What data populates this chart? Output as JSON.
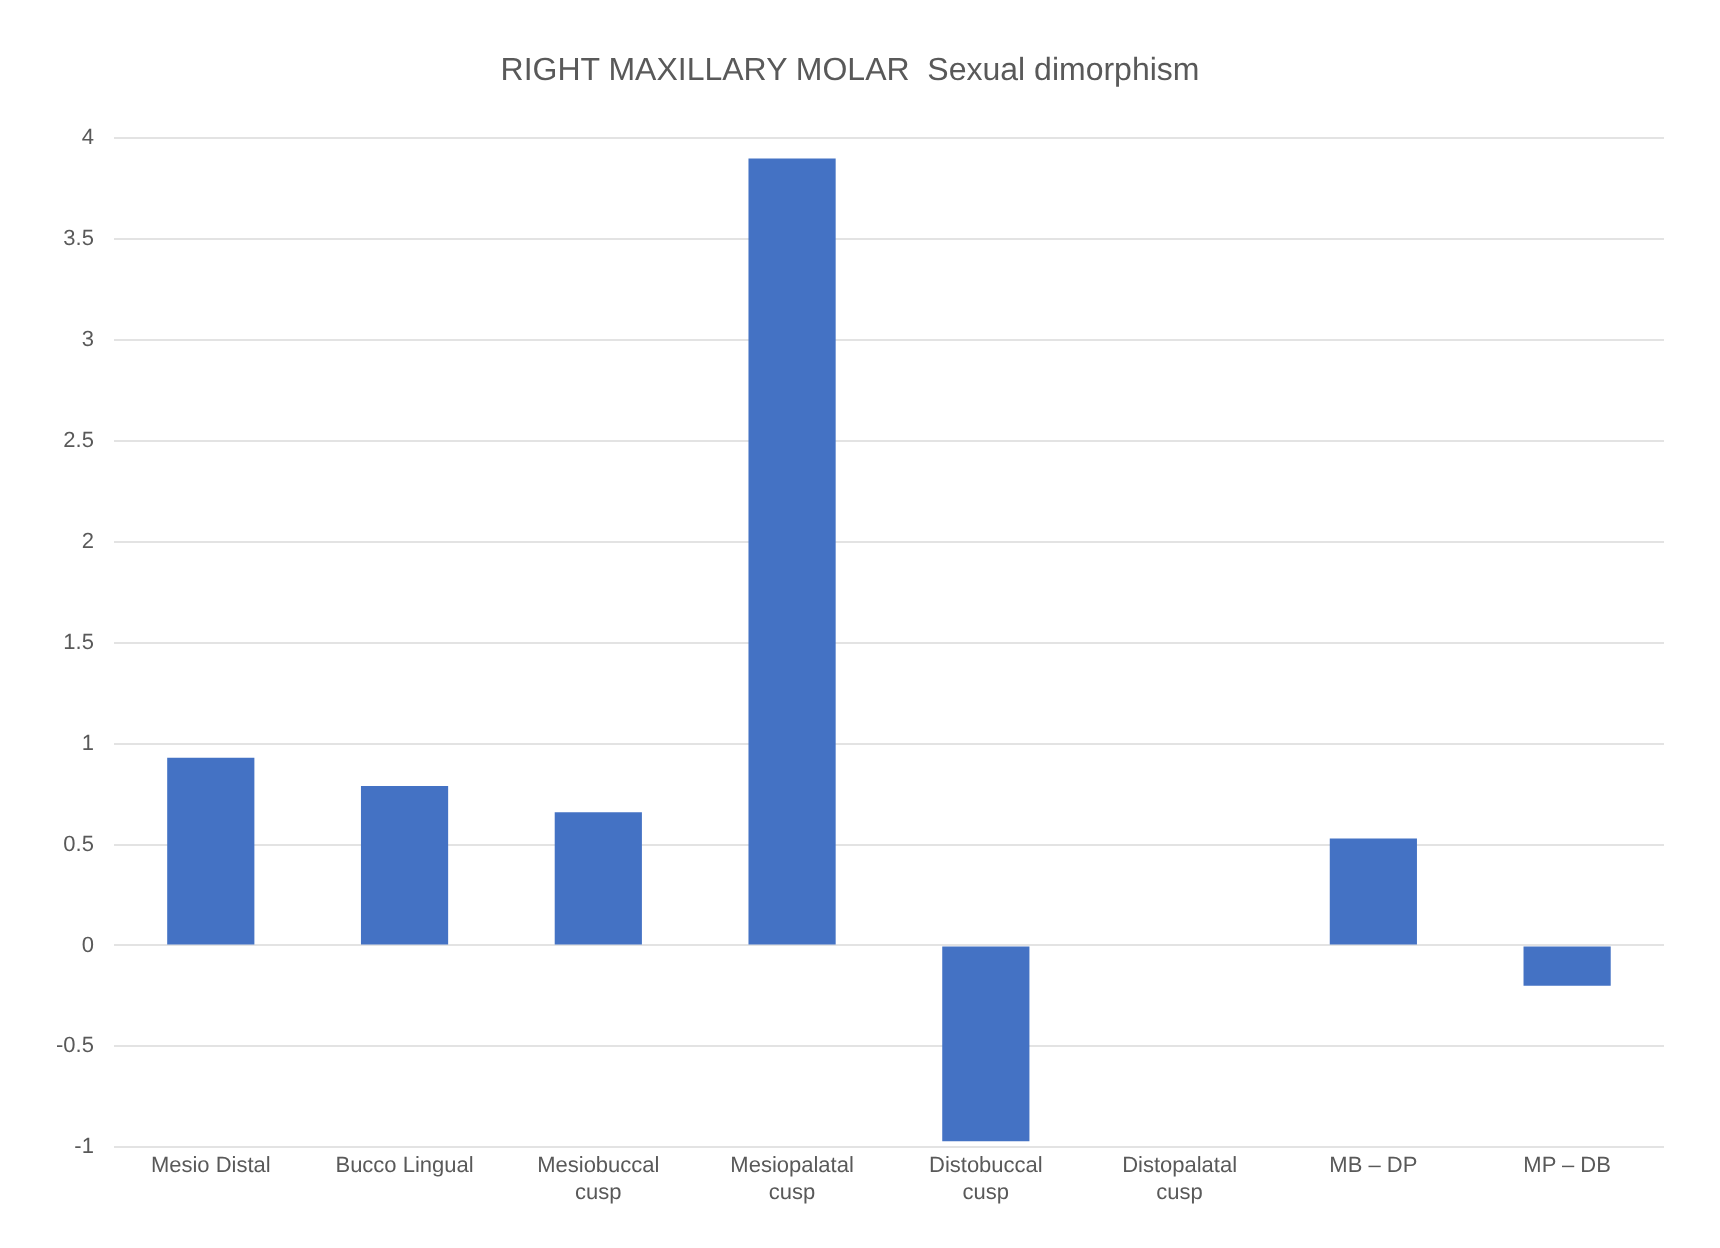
{
  "chart_data": {
    "type": "bar",
    "title": "RIGHT MAXILLARY MOLAR  Sexual dimorphism",
    "categories": [
      "Mesio Distal",
      "Bucco Lingual",
      "Mesiobuccal cusp",
      "Mesiopalatal cusp",
      "Distobuccal cusp",
      "Distopalatal cusp",
      "MB – DP",
      "MP – DB"
    ],
    "values": [
      0.93,
      0.79,
      0.66,
      3.9,
      -0.97,
      0.0,
      0.53,
      -0.2
    ],
    "color": "#4472c4",
    "ylim": [
      -1,
      4
    ],
    "yticks": [
      -1,
      -0.5,
      0,
      0.5,
      1,
      1.5,
      2,
      2.5,
      3,
      3.5,
      4
    ],
    "grid": "y"
  }
}
